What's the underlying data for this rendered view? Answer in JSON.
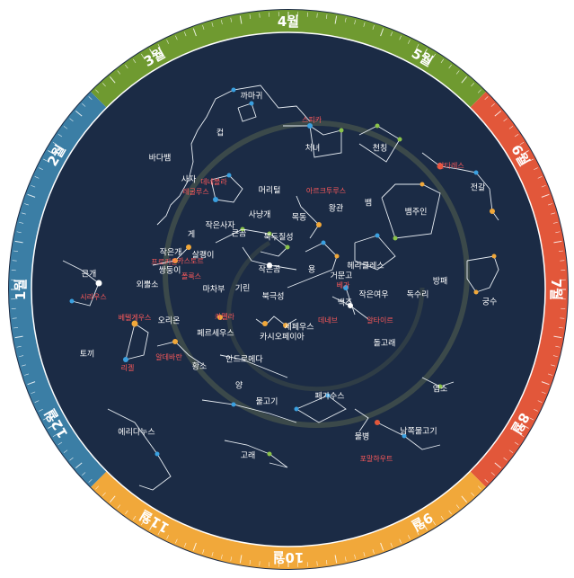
{
  "months": [
    "4월",
    "5월",
    "6월",
    "7월",
    "8월",
    "9월",
    "10월",
    "11월",
    "12월",
    "1월",
    "2월",
    "3월"
  ],
  "constellations": [
    "까마귀",
    "컵",
    "바다뱀",
    "처녀",
    "천칭",
    "전갈",
    "사자",
    "머리털",
    "목동",
    "왕관",
    "뱀",
    "뱀주인",
    "사냥개",
    "작은사자",
    "게",
    "큰곰",
    "북두칠성",
    "살쾡이",
    "작은개",
    "쌍둥이",
    "작은곰",
    "용",
    "거문고",
    "헤라클레스",
    "외뿔소",
    "기린",
    "마차부",
    "북극성",
    "백조",
    "작은여우",
    "독수리",
    "방패",
    "궁수",
    "큰개",
    "오리온",
    "페르세우스",
    "카시오페이아",
    "세페우스",
    "돌고래",
    "토끼",
    "황소",
    "안드로메다",
    "양",
    "물고기",
    "페가수스",
    "염소",
    "남쪽물고기",
    "물병",
    "에리다누스",
    "고래"
  ],
  "stars": [
    "스피카",
    "안타레스",
    "레굴루스",
    "데네볼라",
    "아르크투루스",
    "프로키온",
    "카스토르",
    "폴룩스",
    "시리우스",
    "베텔게우스",
    "카펠라",
    "베가",
    "데네브",
    "알타이르",
    "알데바란",
    "리겔",
    "포말하우트"
  ],
  "colors": {
    "ring_spring": "#6f9a30",
    "ring_summer": "#e2573a",
    "ring_autumn": "#f1a83a",
    "ring_winter": "#3b7ea5",
    "sky": "#1b2b45",
    "star_label": "#ff5a5a"
  }
}
